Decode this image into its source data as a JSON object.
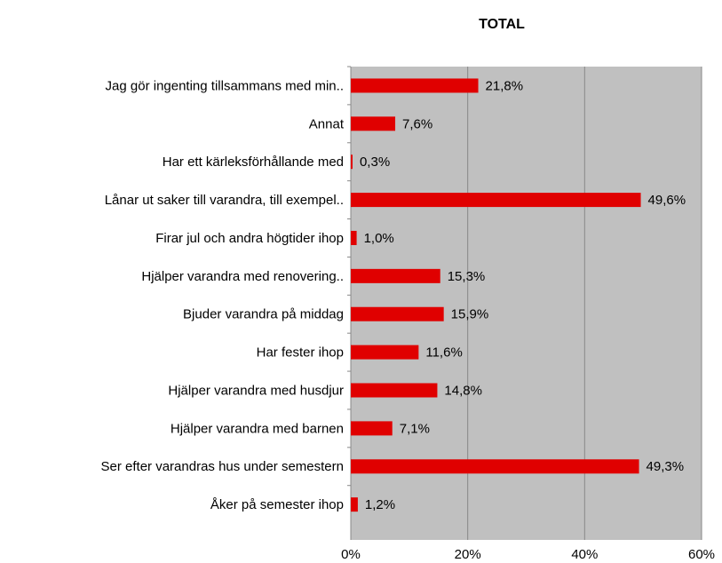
{
  "chart_data": {
    "type": "bar",
    "orientation": "horizontal",
    "title": "TOTAL",
    "categories": [
      "Jag gör ingenting tillsammans med min..",
      "Annat",
      "Har ett kärleksförhållande med",
      "Lånar ut saker till varandra, till exempel..",
      "Firar jul och andra högtider ihop",
      "Hjälper varandra med renovering..",
      "Bjuder varandra på middag",
      "Har fester ihop",
      "Hjälper varandra med husdjur",
      "Hjälper varandra med barnen",
      "Ser efter varandras hus under semestern",
      "Åker på semester ihop"
    ],
    "values": [
      21.8,
      7.6,
      0.3,
      49.6,
      1.0,
      15.3,
      15.9,
      11.6,
      14.8,
      7.1,
      49.3,
      1.2
    ],
    "value_labels": [
      "21,8%",
      "7,6%",
      "0,3%",
      "49,6%",
      "1,0%",
      "15,3%",
      "15,9%",
      "11,6%",
      "14,8%",
      "7,1%",
      "49,3%",
      "1,2%"
    ],
    "color": "#e00000",
    "xlim": [
      0,
      60
    ],
    "xticks": [
      {
        "value": 0,
        "label": "0%"
      },
      {
        "value": 20,
        "label": "20%"
      },
      {
        "value": 40,
        "label": "40%"
      },
      {
        "value": 60,
        "label": "60%"
      }
    ],
    "grid": true
  }
}
